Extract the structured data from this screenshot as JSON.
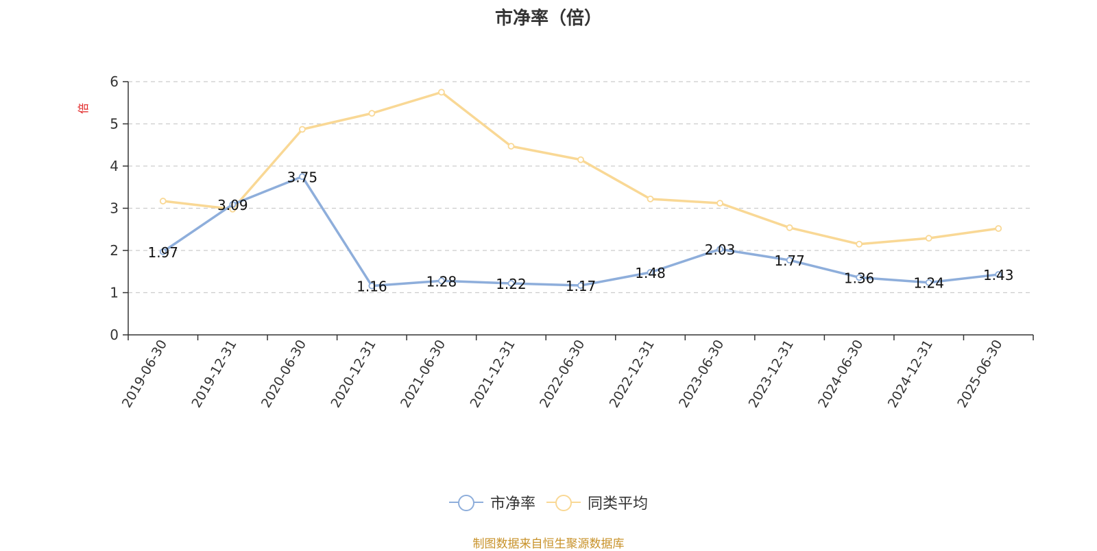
{
  "chart_data": {
    "type": "line",
    "title": "市净率（倍）",
    "ylabel": "倍",
    "ylim": [
      0,
      6
    ],
    "yticks": [
      0,
      1,
      2,
      3,
      4,
      5,
      6
    ],
    "grid": true,
    "legend_position": "bottom-center",
    "categories": [
      "2019-06-30",
      "2019-12-31",
      "2020-06-30",
      "2020-12-31",
      "2021-06-30",
      "2021-12-31",
      "2022-06-30",
      "2022-12-31",
      "2023-06-30",
      "2023-12-31",
      "2024-06-30",
      "2024-12-31",
      "2025-06-30"
    ],
    "series": [
      {
        "name": "市净率",
        "color": "#8eaedb",
        "values": [
          1.97,
          3.09,
          3.75,
          1.16,
          1.28,
          1.22,
          1.17,
          1.48,
          2.03,
          1.77,
          1.36,
          1.24,
          1.43
        ],
        "data_labels": [
          "1.97",
          "3.09",
          "3.75",
          "1.16",
          "1.28",
          "1.22",
          "1.17",
          "1.48",
          "2.03",
          "1.77",
          "1.36",
          "1.24",
          "1.43"
        ]
      },
      {
        "name": "同类平均",
        "color": "#f9d895",
        "values": [
          3.17,
          2.98,
          4.87,
          5.25,
          5.75,
          4.47,
          4.15,
          3.22,
          3.12,
          2.54,
          2.15,
          2.29,
          2.52
        ]
      }
    ]
  },
  "source_note": "制图数据来自恒生聚源数据库"
}
